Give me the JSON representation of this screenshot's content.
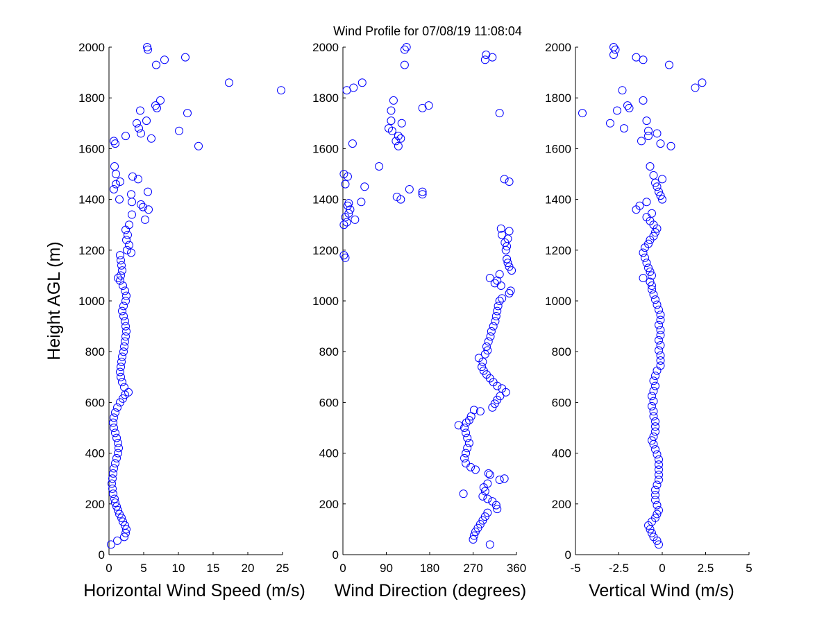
{
  "figure": {
    "title": "Wind Profile for  07/08/19 11:08:04"
  },
  "chart_data": [
    {
      "type": "scatter",
      "xlabel": "Horizontal Wind Speed (m/s)",
      "ylabel": "Height AGL (m)",
      "xlim": [
        0,
        25
      ],
      "ylim": [
        0,
        2000
      ],
      "xticks": [
        "0",
        "5",
        "10",
        "15",
        "20",
        "25"
      ],
      "yticks": [
        "0",
        "200",
        "400",
        "600",
        "800",
        "1000",
        "1200",
        "1400",
        "1600",
        "1800",
        "2000"
      ],
      "color": "#0000ff",
      "points": [
        [
          0.3,
          40
        ],
        [
          1.2,
          55
        ],
        [
          2.2,
          70
        ],
        [
          2.4,
          85
        ],
        [
          2.5,
          100
        ],
        [
          2.3,
          115
        ],
        [
          2.0,
          130
        ],
        [
          1.8,
          145
        ],
        [
          1.5,
          160
        ],
        [
          1.3,
          175
        ],
        [
          1.1,
          190
        ],
        [
          0.9,
          205
        ],
        [
          0.8,
          220
        ],
        [
          0.6,
          240
        ],
        [
          0.5,
          260
        ],
        [
          0.4,
          280
        ],
        [
          0.5,
          300
        ],
        [
          0.6,
          320
        ],
        [
          0.7,
          340
        ],
        [
          0.9,
          360
        ],
        [
          1.1,
          380
        ],
        [
          1.3,
          400
        ],
        [
          1.4,
          420
        ],
        [
          1.3,
          440
        ],
        [
          1.1,
          460
        ],
        [
          0.9,
          480
        ],
        [
          0.7,
          500
        ],
        [
          0.6,
          520
        ],
        [
          0.7,
          540
        ],
        [
          0.9,
          560
        ],
        [
          1.2,
          580
        ],
        [
          1.6,
          600
        ],
        [
          2.0,
          615
        ],
        [
          2.3,
          630
        ],
        [
          2.8,
          640
        ],
        [
          2.2,
          660
        ],
        [
          1.9,
          680
        ],
        [
          1.7,
          700
        ],
        [
          1.6,
          720
        ],
        [
          1.7,
          740
        ],
        [
          1.8,
          760
        ],
        [
          1.9,
          780
        ],
        [
          2.1,
          800
        ],
        [
          2.2,
          820
        ],
        [
          2.3,
          840
        ],
        [
          2.4,
          860
        ],
        [
          2.5,
          880
        ],
        [
          2.4,
          900
        ],
        [
          2.3,
          920
        ],
        [
          2.1,
          940
        ],
        [
          1.9,
          960
        ],
        [
          2.1,
          980
        ],
        [
          2.4,
          1000
        ],
        [
          2.5,
          1020
        ],
        [
          2.3,
          1040
        ],
        [
          2.0,
          1060
        ],
        [
          1.6,
          1080
        ],
        [
          1.3,
          1090
        ],
        [
          1.7,
          1100
        ],
        [
          1.9,
          1120
        ],
        [
          1.8,
          1140
        ],
        [
          1.7,
          1160
        ],
        [
          1.6,
          1180
        ],
        [
          3.2,
          1190
        ],
        [
          2.6,
          1200
        ],
        [
          2.9,
          1220
        ],
        [
          2.5,
          1240
        ],
        [
          2.7,
          1260
        ],
        [
          2.4,
          1280
        ],
        [
          2.9,
          1300
        ],
        [
          5.2,
          1320
        ],
        [
          3.3,
          1340
        ],
        [
          5.7,
          1360
        ],
        [
          4.9,
          1370
        ],
        [
          4.6,
          1380
        ],
        [
          1.5,
          1400
        ],
        [
          3.3,
          1390
        ],
        [
          3.2,
          1420
        ],
        [
          5.6,
          1430
        ],
        [
          0.7,
          1440
        ],
        [
          1.0,
          1460
        ],
        [
          1.6,
          1470
        ],
        [
          4.2,
          1480
        ],
        [
          3.4,
          1490
        ],
        [
          1.0,
          1500
        ],
        [
          0.8,
          1530
        ],
        [
          0.9,
          1620
        ],
        [
          0.7,
          1630
        ],
        [
          2.4,
          1650
        ],
        [
          6.1,
          1640
        ],
        [
          12.9,
          1610
        ],
        [
          4.6,
          1660
        ],
        [
          4.3,
          1680
        ],
        [
          10.1,
          1670
        ],
        [
          4.0,
          1700
        ],
        [
          5.4,
          1710
        ],
        [
          11.3,
          1740
        ],
        [
          4.5,
          1750
        ],
        [
          6.9,
          1760
        ],
        [
          6.7,
          1770
        ],
        [
          7.4,
          1790
        ],
        [
          24.8,
          1830
        ],
        [
          17.3,
          1860
        ],
        [
          6.8,
          1930
        ],
        [
          8.0,
          1950
        ],
        [
          11.0,
          1960
        ],
        [
          5.6,
          1990
        ],
        [
          5.5,
          2000
        ]
      ]
    },
    {
      "type": "scatter",
      "xlabel": "Wind Direction (degrees)",
      "xlim": [
        0,
        360
      ],
      "ylim": [
        0,
        2000
      ],
      "xticks": [
        "0",
        "90",
        "180",
        "270",
        "360"
      ],
      "yticks": [
        "0",
        "200",
        "400",
        "600",
        "800",
        "1000",
        "1200",
        "1400",
        "1600",
        "1800",
        "2000"
      ],
      "color": "#0000ff",
      "points": [
        [
          305,
          40
        ],
        [
          270,
          60
        ],
        [
          272,
          75
        ],
        [
          275,
          90
        ],
        [
          280,
          105
        ],
        [
          285,
          120
        ],
        [
          290,
          135
        ],
        [
          295,
          150
        ],
        [
          300,
          165
        ],
        [
          320,
          180
        ],
        [
          318,
          195
        ],
        [
          310,
          210
        ],
        [
          300,
          220
        ],
        [
          290,
          230
        ],
        [
          250,
          240
        ],
        [
          295,
          250
        ],
        [
          292,
          265
        ],
        [
          300,
          280
        ],
        [
          325,
          295
        ],
        [
          335,
          300
        ],
        [
          305,
          315
        ],
        [
          302,
          320
        ],
        [
          275,
          335
        ],
        [
          265,
          345
        ],
        [
          255,
          360
        ],
        [
          252,
          380
        ],
        [
          255,
          400
        ],
        [
          258,
          420
        ],
        [
          262,
          440
        ],
        [
          258,
          460
        ],
        [
          255,
          480
        ],
        [
          252,
          500
        ],
        [
          240,
          510
        ],
        [
          256,
          520
        ],
        [
          262,
          530
        ],
        [
          266,
          545
        ],
        [
          285,
          565
        ],
        [
          272,
          570
        ],
        [
          310,
          580
        ],
        [
          315,
          595
        ],
        [
          320,
          610
        ],
        [
          326,
          625
        ],
        [
          338,
          640
        ],
        [
          330,
          655
        ],
        [
          320,
          665
        ],
        [
          312,
          680
        ],
        [
          305,
          695
        ],
        [
          298,
          710
        ],
        [
          292,
          725
        ],
        [
          288,
          740
        ],
        [
          290,
          760
        ],
        [
          282,
          775
        ],
        [
          295,
          790
        ],
        [
          300,
          805
        ],
        [
          298,
          820
        ],
        [
          302,
          840
        ],
        [
          306,
          860
        ],
        [
          308,
          880
        ],
        [
          312,
          900
        ],
        [
          316,
          920
        ],
        [
          318,
          940
        ],
        [
          320,
          960
        ],
        [
          322,
          980
        ],
        [
          325,
          1000
        ],
        [
          330,
          1010
        ],
        [
          345,
          1030
        ],
        [
          348,
          1040
        ],
        [
          328,
          1060
        ],
        [
          315,
          1070
        ],
        [
          320,
          1080
        ],
        [
          305,
          1090
        ],
        [
          325,
          1105
        ],
        [
          350,
          1120
        ],
        [
          345,
          1135
        ],
        [
          342,
          1150
        ],
        [
          340,
          1165
        ],
        [
          5,
          1170
        ],
        [
          2,
          1180
        ],
        [
          338,
          1200
        ],
        [
          340,
          1215
        ],
        [
          336,
          1230
        ],
        [
          342,
          1245
        ],
        [
          330,
          1260
        ],
        [
          345,
          1275
        ],
        [
          328,
          1285
        ],
        [
          2,
          1300
        ],
        [
          8,
          1310
        ],
        [
          25,
          1320
        ],
        [
          5,
          1330
        ],
        [
          12,
          1345
        ],
        [
          15,
          1360
        ],
        [
          10,
          1375
        ],
        [
          12,
          1385
        ],
        [
          38,
          1390
        ],
        [
          120,
          1400
        ],
        [
          112,
          1410
        ],
        [
          165,
          1420
        ],
        [
          165,
          1430
        ],
        [
          138,
          1440
        ],
        [
          45,
          1450
        ],
        [
          5,
          1460
        ],
        [
          345,
          1470
        ],
        [
          335,
          1480
        ],
        [
          10,
          1490
        ],
        [
          2,
          1500
        ],
        [
          75,
          1530
        ],
        [
          115,
          1610
        ],
        [
          20,
          1620
        ],
        [
          110,
          1630
        ],
        [
          120,
          1640
        ],
        [
          115,
          1650
        ],
        [
          102,
          1670
        ],
        [
          95,
          1680
        ],
        [
          122,
          1700
        ],
        [
          100,
          1710
        ],
        [
          325,
          1740
        ],
        [
          100,
          1750
        ],
        [
          165,
          1760
        ],
        [
          178,
          1770
        ],
        [
          105,
          1790
        ],
        [
          8,
          1830
        ],
        [
          22,
          1840
        ],
        [
          40,
          1860
        ],
        [
          128,
          1930
        ],
        [
          295,
          1950
        ],
        [
          310,
          1960
        ],
        [
          297,
          1970
        ],
        [
          128,
          1990
        ],
        [
          132,
          2000
        ]
      ]
    },
    {
      "type": "scatter",
      "xlabel": "Vertical Wind (m/s)",
      "xlim": [
        -5,
        5
      ],
      "ylim": [
        0,
        2000
      ],
      "xticks": [
        "-5",
        "-2.5",
        "0",
        "2.5",
        "5"
      ],
      "yticks": [
        "0",
        "200",
        "400",
        "600",
        "800",
        "1000",
        "1200",
        "1400",
        "1600",
        "1800",
        "2000"
      ],
      "color": "#0000ff",
      "points": [
        [
          -0.2,
          40
        ],
        [
          -0.3,
          55
        ],
        [
          -0.5,
          70
        ],
        [
          -0.6,
          85
        ],
        [
          -0.7,
          100
        ],
        [
          -0.8,
          115
        ],
        [
          -0.6,
          130
        ],
        [
          -0.4,
          145
        ],
        [
          -0.3,
          160
        ],
        [
          -0.2,
          175
        ],
        [
          -0.3,
          195
        ],
        [
          -0.4,
          215
        ],
        [
          -0.4,
          235
        ],
        [
          -0.4,
          255
        ],
        [
          -0.3,
          275
        ],
        [
          -0.2,
          295
        ],
        [
          -0.2,
          315
        ],
        [
          -0.2,
          335
        ],
        [
          -0.2,
          355
        ],
        [
          -0.2,
          375
        ],
        [
          -0.3,
          395
        ],
        [
          -0.4,
          415
        ],
        [
          -0.5,
          435
        ],
        [
          -0.6,
          450
        ],
        [
          -0.5,
          465
        ],
        [
          -0.4,
          485
        ],
        [
          -0.4,
          505
        ],
        [
          -0.4,
          525
        ],
        [
          -0.5,
          545
        ],
        [
          -0.5,
          565
        ],
        [
          -0.6,
          585
        ],
        [
          -0.5,
          605
        ],
        [
          -0.6,
          625
        ],
        [
          -0.5,
          645
        ],
        [
          -0.4,
          665
        ],
        [
          -0.5,
          685
        ],
        [
          -0.4,
          705
        ],
        [
          -0.3,
          725
        ],
        [
          -0.1,
          745
        ],
        [
          -0.1,
          765
        ],
        [
          -0.1,
          785
        ],
        [
          -0.2,
          805
        ],
        [
          -0.1,
          825
        ],
        [
          -0.2,
          845
        ],
        [
          -0.1,
          865
        ],
        [
          -0.1,
          885
        ],
        [
          -0.2,
          905
        ],
        [
          -0.1,
          925
        ],
        [
          -0.1,
          945
        ],
        [
          -0.2,
          965
        ],
        [
          -0.3,
          985
        ],
        [
          -0.4,
          1005
        ],
        [
          -0.5,
          1025
        ],
        [
          -0.6,
          1045
        ],
        [
          -0.6,
          1060
        ],
        [
          -0.7,
          1075
        ],
        [
          -1.1,
          1090
        ],
        [
          -0.6,
          1100
        ],
        [
          -0.7,
          1115
        ],
        [
          -0.8,
          1130
        ],
        [
          -0.9,
          1150
        ],
        [
          -1.0,
          1170
        ],
        [
          -1.1,
          1190
        ],
        [
          -1.0,
          1210
        ],
        [
          -0.8,
          1225
        ],
        [
          -0.7,
          1240
        ],
        [
          -0.5,
          1255
        ],
        [
          -0.4,
          1270
        ],
        [
          -0.3,
          1285
        ],
        [
          -0.5,
          1300
        ],
        [
          -0.7,
          1315
        ],
        [
          -0.9,
          1330
        ],
        [
          -0.6,
          1345
        ],
        [
          -1.5,
          1360
        ],
        [
          -1.3,
          1375
        ],
        [
          -0.9,
          1390
        ],
        [
          0.0,
          1400
        ],
        [
          -0.1,
          1415
        ],
        [
          -0.2,
          1430
        ],
        [
          -0.3,
          1450
        ],
        [
          -0.4,
          1465
        ],
        [
          0.0,
          1480
        ],
        [
          -0.5,
          1495
        ],
        [
          -0.7,
          1530
        ],
        [
          0.5,
          1610
        ],
        [
          -1.2,
          1630
        ],
        [
          -0.1,
          1620
        ],
        [
          -0.8,
          1650
        ],
        [
          -0.3,
          1660
        ],
        [
          -0.8,
          1670
        ],
        [
          -2.2,
          1680
        ],
        [
          -3.0,
          1700
        ],
        [
          -0.9,
          1710
        ],
        [
          -4.6,
          1740
        ],
        [
          -2.6,
          1750
        ],
        [
          -1.9,
          1760
        ],
        [
          -2.0,
          1770
        ],
        [
          -1.1,
          1790
        ],
        [
          -2.3,
          1830
        ],
        [
          1.9,
          1840
        ],
        [
          2.3,
          1860
        ],
        [
          0.4,
          1930
        ],
        [
          -1.1,
          1950
        ],
        [
          -1.5,
          1960
        ],
        [
          -2.8,
          1970
        ],
        [
          -2.7,
          1990
        ],
        [
          -2.8,
          2000
        ]
      ]
    }
  ]
}
